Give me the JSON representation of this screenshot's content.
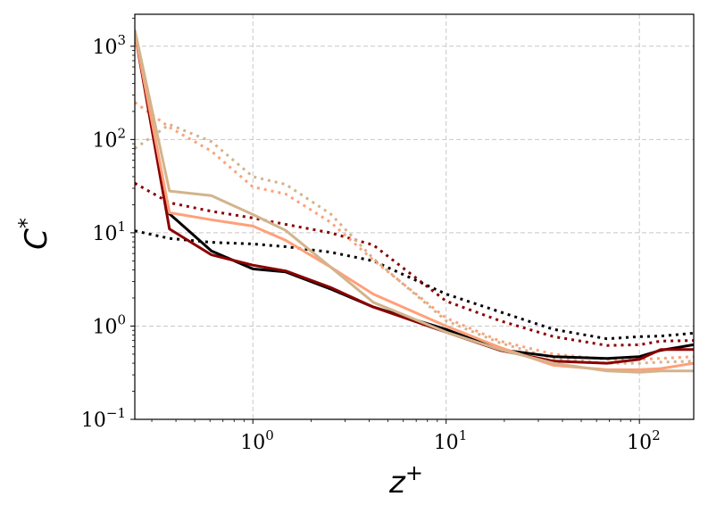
{
  "chart_data": {
    "type": "line",
    "title": "",
    "xlabel": {
      "base": "z",
      "sup": "+"
    },
    "ylabel": {
      "base": "C",
      "sup": "*"
    },
    "xscale": "log",
    "yscale": "log",
    "xlim": [
      0.245,
      191
    ],
    "ylim": [
      0.1,
      2200
    ],
    "grid": true,
    "legend": "none",
    "xticks": [
      {
        "base": "10",
        "exp": "0",
        "value": 1
      },
      {
        "base": "10",
        "exp": "1",
        "value": 10
      },
      {
        "base": "10",
        "exp": "2",
        "value": 100
      }
    ],
    "yticks": [
      {
        "base": "10",
        "exp": "−1",
        "value": 0.1
      },
      {
        "base": "10",
        "exp": "0",
        "value": 1
      },
      {
        "base": "10",
        "exp": "1",
        "value": 10
      },
      {
        "base": "10",
        "exp": "2",
        "value": 100
      },
      {
        "base": "10",
        "exp": "3",
        "value": 1000
      }
    ],
    "x": [
      0.245,
      0.37,
      0.61,
      1,
      1.48,
      2.52,
      4.2,
      10,
      19,
      36,
      68,
      100,
      129,
      191
    ],
    "series": [
      {
        "name": "black-solid",
        "color": "#000000",
        "style": "solid",
        "values": [
          1400,
          16,
          6.4,
          4.1,
          3.8,
          2.5,
          1.6,
          0.92,
          0.56,
          0.47,
          0.45,
          0.47,
          0.55,
          0.63
        ]
      },
      {
        "name": "darkred-solid",
        "color": "#8b0000",
        "style": "solid",
        "values": [
          1400,
          11,
          5.8,
          4.5,
          3.9,
          2.6,
          1.6,
          0.86,
          0.55,
          0.42,
          0.4,
          0.44,
          0.56,
          0.56
        ]
      },
      {
        "name": "salmon-solid",
        "color": "#ffa07a",
        "style": "solid",
        "values": [
          1400,
          16.4,
          13.8,
          11.8,
          8.3,
          4.3,
          2.2,
          1.0,
          0.59,
          0.38,
          0.34,
          0.34,
          0.35,
          0.4
        ]
      },
      {
        "name": "tan-solid",
        "color": "#d2b48c",
        "style": "solid",
        "values": [
          1500,
          28,
          25,
          15.7,
          10.6,
          4.3,
          1.8,
          0.86,
          0.56,
          0.4,
          0.33,
          0.32,
          0.33,
          0.33
        ]
      },
      {
        "name": "black-dotted",
        "color": "#000000",
        "style": "dotted",
        "values": [
          10.5,
          8.7,
          7.9,
          7.6,
          7.1,
          6.2,
          5.0,
          2.2,
          1.42,
          0.92,
          0.73,
          0.77,
          0.78,
          0.84
        ]
      },
      {
        "name": "darkred-dotted",
        "color": "#8b0000",
        "style": "dotted",
        "values": [
          34,
          21,
          17,
          14.4,
          12.3,
          10,
          7.4,
          1.85,
          1.14,
          0.77,
          0.62,
          0.63,
          0.69,
          0.7
        ]
      },
      {
        "name": "salmon-dotted",
        "color": "#ffa07a",
        "style": "dotted",
        "values": [
          250,
          135,
          75,
          31,
          26,
          13,
          5.1,
          1.22,
          0.69,
          0.5,
          0.44,
          0.44,
          0.45,
          0.47
        ]
      },
      {
        "name": "tan-dotted",
        "color": "#d2b48c",
        "style": "dotted",
        "values": [
          80,
          145,
          95,
          40,
          33,
          16,
          5.3,
          1.14,
          0.66,
          0.45,
          0.4,
          0.4,
          0.41,
          0.42
        ]
      }
    ]
  }
}
